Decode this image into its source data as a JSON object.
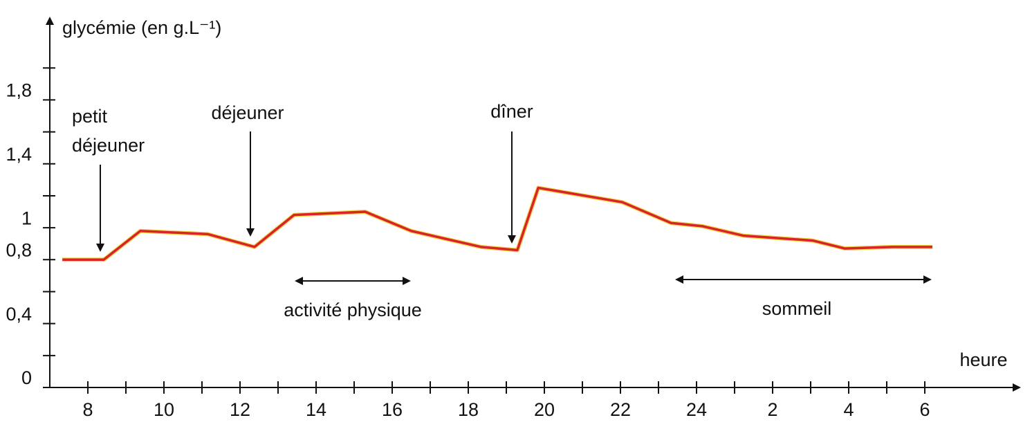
{
  "chart_data": {
    "type": "line",
    "y_label": "glycémie (en g.L⁻¹)",
    "x_label": "heure",
    "xlim": [
      7,
      32.6
    ],
    "ylim": [
      0,
      2.3
    ],
    "xticks": [
      8,
      10,
      12,
      14,
      16,
      18,
      20,
      22,
      24,
      {
        "value": 26,
        "label": "2"
      },
      {
        "value": 28,
        "label": "4"
      },
      {
        "value": 30,
        "label": "6"
      }
    ],
    "x_minor_ticks": [
      9,
      11,
      13,
      15,
      17,
      19,
      21,
      23,
      25,
      27,
      29
    ],
    "yticks": [
      0,
      {
        "value": 0.4,
        "label": "0,4"
      },
      {
        "value": 0.8,
        "label": "0,8"
      },
      1,
      {
        "value": 1.4,
        "label": "1,4"
      },
      {
        "value": 1.8,
        "label": "1,8"
      }
    ],
    "y_minor_ticks": [
      0.2,
      0.6,
      1.2,
      1.6,
      2.0
    ],
    "series": [
      {
        "name": "glycémie",
        "color": "#d8232a",
        "x": [
          7.33,
          8.42,
          9.38,
          11.15,
          12.38,
          13.42,
          15.29,
          16.5,
          18.33,
          19.29,
          19.84,
          20.33,
          22.05,
          23.33,
          24.15,
          25.24,
          27.05,
          27.9,
          29.15,
          30.2
        ],
        "values": [
          0.8,
          0.8,
          0.98,
          0.96,
          0.88,
          1.08,
          1.1,
          0.98,
          0.88,
          0.86,
          1.25,
          1.23,
          1.16,
          1.03,
          1.01,
          0.95,
          0.92,
          0.87,
          0.88,
          0.88
        ]
      }
    ],
    "annotations": {
      "petit_dejeuner": [
        "petit",
        "déjeuner"
      ],
      "dejeuner": "déjeuner",
      "diner": "dîner",
      "activite": "activité physique",
      "sommeil": "sommeil"
    }
  }
}
